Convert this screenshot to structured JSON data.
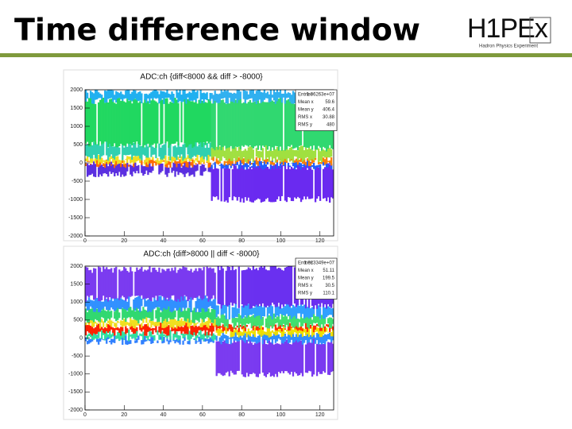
{
  "header": {
    "title": "Time difference window",
    "logo": "H1PEx",
    "logo_subtitle": "Hadron Physics Experiment"
  },
  "chart_data": [
    {
      "type": "heatmap",
      "title": "ADC:ch {diff<8000 && diff > -8000}",
      "xlim": [
        0,
        127
      ],
      "ylim": [
        -2000,
        2000
      ],
      "xticks": [
        0,
        20,
        40,
        60,
        80,
        100,
        120
      ],
      "yticks": [
        -2000,
        -1500,
        -1000,
        -500,
        0,
        500,
        1000,
        1500,
        2000
      ],
      "stats": [
        {
          "label": "Entries",
          "value": "1.06263e+07"
        },
        {
          "label": "Mean x",
          "value": "59.6"
        },
        {
          "label": "Mean y",
          "value": "406.4"
        },
        {
          "label": "RMS x",
          "value": "30.88"
        },
        {
          "label": "RMS y",
          "value": "480"
        }
      ]
    },
    {
      "type": "heatmap",
      "title": "ADC:ch {diff>8000 || diff < -8000}",
      "xlim": [
        0,
        127
      ],
      "ylim": [
        -2000,
        2000
      ],
      "xticks": [
        0,
        20,
        40,
        60,
        80,
        100,
        120
      ],
      "yticks": [
        -2000,
        -1500,
        -1000,
        -500,
        0,
        500,
        1000,
        1500,
        2000
      ],
      "stats": [
        {
          "label": "Entries",
          "value": "1.023349e+07"
        },
        {
          "label": "Mean x",
          "value": "51.11"
        },
        {
          "label": "Mean y",
          "value": "199.5"
        },
        {
          "label": "RMS x",
          "value": "30.5"
        },
        {
          "label": "RMS y",
          "value": "110.1"
        }
      ]
    }
  ]
}
